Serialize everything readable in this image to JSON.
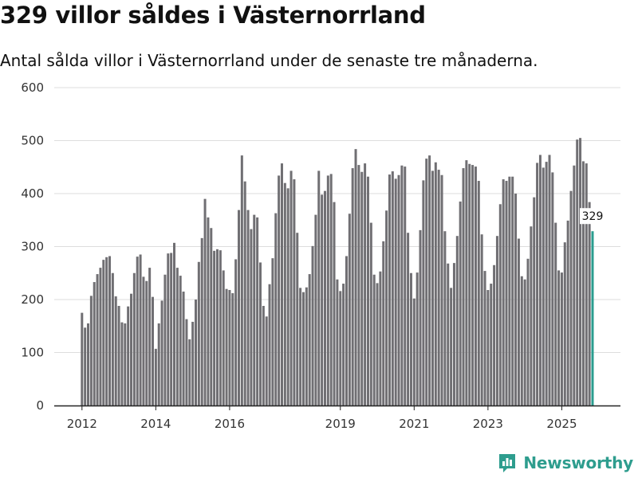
{
  "title": "329 villor såldes i Västernorrland",
  "subtitle": "Antal sålda villor i Västernorrland under de senaste tre månaderna.",
  "brand": {
    "name": "Newsworthy",
    "icon": "newsworthy-chart-icon"
  },
  "colors": {
    "bar": "#706f73",
    "highlight": "#2a9d8f",
    "grid": "#dddddd",
    "axis": "#222222",
    "brand": "#2e9d8e"
  },
  "chart_data": {
    "type": "bar",
    "title": "329 villor såldes i Västernorrland",
    "xlabel": "",
    "ylabel": "",
    "ylim": [
      0,
      600
    ],
    "yticks": [
      0,
      100,
      200,
      300,
      400,
      500,
      600
    ],
    "start": "2012-01",
    "xticks": [
      {
        "label": "2012",
        "index": 0
      },
      {
        "label": "2014",
        "index": 24
      },
      {
        "label": "2016",
        "index": 48
      },
      {
        "label": "2019",
        "index": 84
      },
      {
        "label": "2021",
        "index": 108
      },
      {
        "label": "2023",
        "index": 132
      },
      {
        "label": "2025",
        "index": 156
      }
    ],
    "highlight_label": "329",
    "values": [
      175,
      147,
      155,
      207,
      233,
      248,
      260,
      275,
      280,
      282,
      250,
      206,
      188,
      157,
      155,
      187,
      211,
      250,
      281,
      285,
      243,
      235,
      260,
      205,
      107,
      155,
      198,
      247,
      287,
      288,
      307,
      260,
      245,
      215,
      163,
      125,
      158,
      200,
      271,
      316,
      390,
      355,
      335,
      292,
      295,
      293,
      255,
      220,
      218,
      212,
      276,
      369,
      472,
      423,
      369,
      333,
      360,
      355,
      270,
      188,
      168,
      229,
      278,
      363,
      434,
      457,
      420,
      410,
      443,
      427,
      326,
      222,
      214,
      223,
      248,
      301,
      360,
      443,
      398,
      405,
      434,
      437,
      384,
      238,
      216,
      230,
      282,
      362,
      448,
      484,
      454,
      441,
      457,
      432,
      345,
      247,
      231,
      253,
      310,
      368,
      436,
      442,
      428,
      435,
      453,
      451,
      326,
      250,
      202,
      251,
      331,
      425,
      466,
      472,
      443,
      459,
      445,
      435,
      329,
      268,
      222,
      269,
      320,
      385,
      448,
      463,
      456,
      454,
      451,
      424,
      323,
      254,
      218,
      230,
      265,
      320,
      380,
      427,
      424,
      432,
      432,
      400,
      315,
      244,
      238,
      277,
      338,
      393,
      458,
      473,
      449,
      460,
      473,
      440,
      345,
      255,
      251,
      308,
      349,
      405,
      453,
      502,
      505,
      461,
      457,
      384,
      329
    ]
  }
}
